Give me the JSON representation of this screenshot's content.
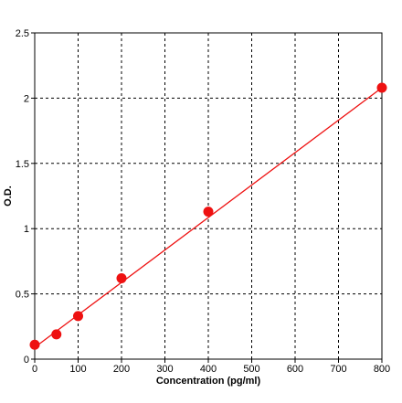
{
  "chart_data": {
    "type": "scatter",
    "title": "",
    "xlabel": "Concentration (pg/ml)",
    "ylabel": "O.D.",
    "xlim": [
      0,
      800
    ],
    "ylim": [
      0,
      2.5
    ],
    "x_ticks": [
      0,
      100,
      200,
      300,
      400,
      500,
      600,
      700,
      800
    ],
    "y_ticks": [
      0,
      0.5,
      1,
      1.5,
      2,
      2.5
    ],
    "grid": true,
    "legend": "none",
    "series": [
      {
        "x": [
          0,
          50,
          100,
          200,
          400,
          800
        ],
        "y": [
          0.11,
          0.19,
          0.33,
          0.62,
          1.13,
          2.08
        ],
        "marker": "circle",
        "color": "#ee1111"
      }
    ],
    "fit_line": {
      "x": [
        0,
        800
      ],
      "y": [
        0.09,
        2.08
      ],
      "color": "#ee1111"
    },
    "colors": {
      "grid": "#000000",
      "axis": "#000000",
      "series": "#ee1111"
    }
  }
}
